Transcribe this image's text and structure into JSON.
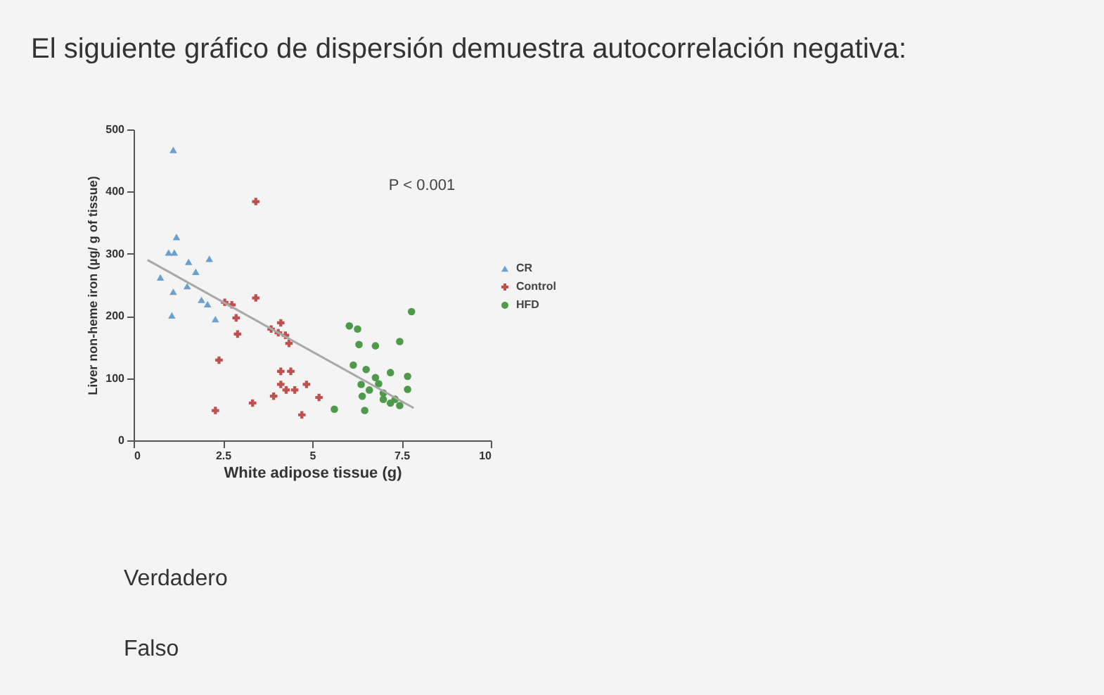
{
  "chart_data": {
    "type": "scatter",
    "title": "El siguiente gráfico de dispersión demuestra autocorrelación negativa:",
    "xlabel": "White adipose tissue (g)",
    "ylabel": "Liver non-heme iron (µg/ g of tissue)",
    "xlim": [
      0,
      10
    ],
    "xticks": [
      0,
      2.5,
      5,
      7.5,
      10
    ],
    "ylim": [
      0,
      500
    ],
    "yticks": [
      0,
      100,
      200,
      300,
      400,
      500
    ],
    "grid": false,
    "legend": "right",
    "annotations": [
      "P < 0.001",
      "Verdadero",
      "Falso"
    ],
    "series": [
      {
        "name": "CR",
        "color": "#6b9fcf",
        "marker": "triangle",
        "x": [
          1.11,
          1.2,
          0.98,
          1.14,
          1.54,
          2.12,
          1.74,
          0.75,
          1.11,
          1.5,
          1.9,
          2.07,
          1.07,
          2.29
        ],
        "values": [
          467,
          327,
          302,
          302,
          287,
          292,
          271,
          262,
          239,
          248,
          226,
          219,
          201,
          195
        ]
      },
      {
        "name": "Control",
        "color": "#c0504d",
        "marker": "cross",
        "x": [
          3.42,
          3.42,
          2.55,
          2.75,
          2.87,
          2.91,
          4.12,
          3.85,
          4.05,
          4.25,
          4.35,
          2.39,
          4.12,
          4.4,
          4.12,
          4.27,
          4.51,
          4.84,
          3.92,
          5.19,
          3.33,
          2.29,
          4.71
        ],
        "values": [
          384,
          229,
          222,
          218,
          197,
          171,
          189,
          179,
          173,
          169,
          156,
          129,
          111,
          111,
          90,
          81,
          81,
          90,
          71,
          69,
          60,
          48,
          41
        ]
      },
      {
        "name": "HFD",
        "color": "#4e9a4a",
        "marker": "circle",
        "x": [
          7.78,
          6.04,
          6.27,
          6.31,
          6.77,
          7.45,
          6.15,
          6.51,
          7.19,
          7.67,
          6.77,
          6.86,
          6.37,
          7.67,
          6.6,
          6.99,
          6.4,
          7.32,
          7.45,
          6.99,
          5.62,
          6.47,
          7.19
        ],
        "values": [
          207,
          184,
          179,
          154,
          152,
          159,
          121,
          114,
          109,
          103,
          101,
          91,
          90,
          82,
          81,
          76,
          71,
          66,
          56,
          66,
          50,
          48,
          60
        ]
      },
      {
        "type": "line",
        "color": "#a8a8a8",
        "x": [
          0.39,
          7.84
        ],
        "values": [
          290,
          52
        ]
      }
    ]
  }
}
